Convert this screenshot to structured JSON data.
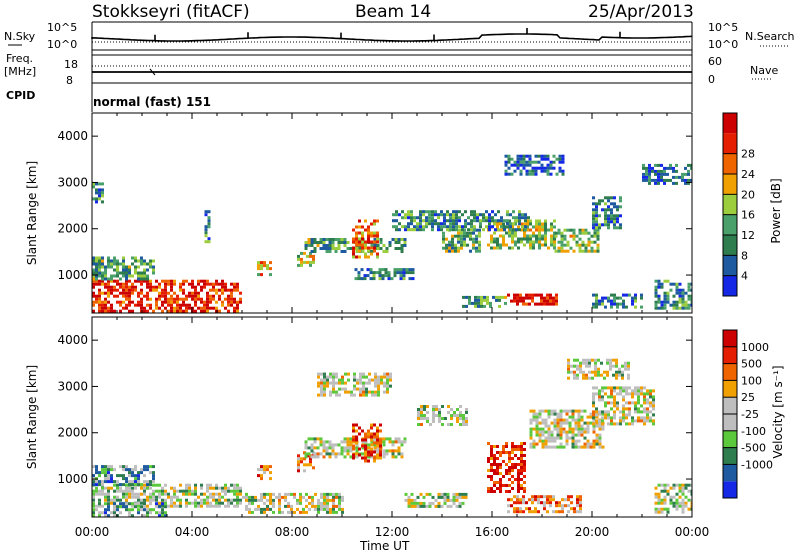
{
  "header": {
    "station": "Stokkseyri (fitACF)",
    "beam": "Beam 14",
    "date": "25/Apr/2013"
  },
  "top_panels": {
    "nsky_label": "N.Sky",
    "nsky_ticks": [
      "10^5",
      "10^0"
    ],
    "nsearch_label": "N.Search",
    "nsearch_ticks": [
      "10^5",
      "10^0"
    ],
    "freq_label_1": "Freq.",
    "freq_label_2": "[MHz]",
    "freq_ticks": [
      "18",
      "8"
    ],
    "nave_label": "Nave",
    "nave_ticks": [
      "60",
      "0"
    ],
    "cpid_label": "CPID",
    "cpid_text": "normal (fast) 151"
  },
  "colors": {
    "power_scale": [
      "#1428e6",
      "#1e5aa0",
      "#2e7d4e",
      "#4aa06a",
      "#9ccd3c",
      "#f0a000",
      "#f06400",
      "#e61e00",
      "#cc0000"
    ],
    "velocity_scale": [
      "#1428e6",
      "#1e5aa0",
      "#2e7d4e",
      "#5cc83c",
      "#bebebe",
      "#bebebe",
      "#f0a000",
      "#f06400",
      "#e61e00",
      "#cc0000"
    ]
  },
  "chart_data": [
    {
      "type": "heatmap",
      "title": "",
      "xlabel": "Time UT",
      "ylabel": "Slant Range [km]",
      "x_ticks": [
        "00:00",
        "04:00",
        "08:00",
        "12:00",
        "16:00",
        "20:00",
        "00:00"
      ],
      "y_ticks": [
        1000,
        2000,
        3000,
        4000
      ],
      "xlim": [
        0,
        24
      ],
      "ylim": [
        180,
        4500
      ],
      "colorbar_label": "Power [dB]",
      "colorbar_ticks": [
        "4",
        "8",
        "12",
        "16",
        "20",
        "24",
        "28"
      ],
      "regions": [
        {
          "t0": 0.0,
          "t1": 5.9,
          "r0": 200,
          "r1": 900,
          "level": 0.85
        },
        {
          "t0": 0.0,
          "t1": 2.5,
          "r0": 900,
          "r1": 1400,
          "level": 0.35
        },
        {
          "t0": 0.0,
          "t1": 0.4,
          "r0": 2600,
          "r1": 3000,
          "level": 0.3
        },
        {
          "t0": 6.6,
          "t1": 7.2,
          "r0": 1000,
          "r1": 1300,
          "level": 0.6
        },
        {
          "t0": 8.2,
          "t1": 8.9,
          "r0": 1200,
          "r1": 1500,
          "level": 0.55
        },
        {
          "t0": 8.5,
          "t1": 12.5,
          "r0": 1500,
          "r1": 1800,
          "level": 0.35
        },
        {
          "t0": 10.4,
          "t1": 11.4,
          "r0": 1400,
          "r1": 2200,
          "level": 0.7
        },
        {
          "t0": 10.5,
          "t1": 12.8,
          "r0": 900,
          "r1": 1150,
          "level": 0.25
        },
        {
          "t0": 14.0,
          "t1": 15.5,
          "r0": 1500,
          "r1": 2000,
          "level": 0.4
        },
        {
          "t0": 14.8,
          "t1": 16.5,
          "r0": 350,
          "r1": 550,
          "level": 0.35
        },
        {
          "t0": 15.8,
          "t1": 18.5,
          "r0": 1600,
          "r1": 2200,
          "level": 0.45
        },
        {
          "t0": 16.6,
          "t1": 18.6,
          "r0": 350,
          "r1": 600,
          "level": 0.95
        },
        {
          "t0": 12.0,
          "t1": 17.5,
          "r0": 2000,
          "r1": 2400,
          "level": 0.3
        },
        {
          "t0": 18.5,
          "t1": 20.2,
          "r0": 1500,
          "r1": 2000,
          "level": 0.45
        },
        {
          "t0": 20.0,
          "t1": 21.2,
          "r0": 2000,
          "r1": 2700,
          "level": 0.25
        },
        {
          "t0": 16.5,
          "t1": 18.8,
          "r0": 3200,
          "r1": 3600,
          "level": 0.2
        },
        {
          "t0": 22.5,
          "t1": 24.0,
          "r0": 300,
          "r1": 900,
          "level": 0.3
        },
        {
          "t0": 20.0,
          "t1": 22.0,
          "r0": 300,
          "r1": 600,
          "level": 0.25
        },
        {
          "t0": 4.5,
          "t1": 4.7,
          "r0": 1700,
          "r1": 2400,
          "level": 0.3
        },
        {
          "t0": 22.0,
          "t1": 24.0,
          "r0": 3000,
          "r1": 3400,
          "level": 0.2
        }
      ]
    },
    {
      "type": "heatmap",
      "title": "",
      "xlabel": "Time UT",
      "ylabel": "Slant Range [km]",
      "x_ticks": [
        "00:00",
        "04:00",
        "08:00",
        "12:00",
        "16:00",
        "20:00",
        "00:00"
      ],
      "y_ticks": [
        1000,
        2000,
        3000,
        4000
      ],
      "xlim": [
        0,
        24
      ],
      "ylim": [
        180,
        4500
      ],
      "colorbar_label": "Velocity [m s⁻¹]",
      "colorbar_ticks": [
        "1000",
        "500",
        "100",
        "25",
        "-25",
        "-100",
        "-500",
        "-1000"
      ],
      "regions": [
        {
          "t0": 0.0,
          "t1": 5.9,
          "r0": 400,
          "r1": 900,
          "level": 0.45
        },
        {
          "t0": 0.0,
          "t1": 3.0,
          "r0": 200,
          "r1": 500,
          "level": 0.3
        },
        {
          "t0": 0.0,
          "t1": 2.5,
          "r0": 900,
          "r1": 1300,
          "level": 0.3
        },
        {
          "t0": 6.6,
          "t1": 7.2,
          "r0": 1000,
          "r1": 1300,
          "level": 0.7
        },
        {
          "t0": 8.2,
          "t1": 8.9,
          "r0": 1200,
          "r1": 1600,
          "level": 0.8
        },
        {
          "t0": 8.5,
          "t1": 12.5,
          "r0": 1500,
          "r1": 1900,
          "level": 0.5
        },
        {
          "t0": 10.4,
          "t1": 11.6,
          "r0": 1400,
          "r1": 2200,
          "level": 0.85
        },
        {
          "t0": 9.0,
          "t1": 12.0,
          "r0": 2800,
          "r1": 3300,
          "level": 0.5
        },
        {
          "t0": 13.0,
          "t1": 15.0,
          "r0": 2200,
          "r1": 2600,
          "level": 0.5
        },
        {
          "t0": 15.8,
          "t1": 17.3,
          "r0": 700,
          "r1": 1800,
          "level": 0.9
        },
        {
          "t0": 16.6,
          "t1": 19.5,
          "r0": 300,
          "r1": 650,
          "level": 0.7
        },
        {
          "t0": 17.5,
          "t1": 20.5,
          "r0": 1700,
          "r1": 2500,
          "level": 0.5
        },
        {
          "t0": 20.0,
          "t1": 22.5,
          "r0": 2200,
          "r1": 3000,
          "level": 0.5
        },
        {
          "t0": 22.5,
          "t1": 24.0,
          "r0": 300,
          "r1": 900,
          "level": 0.45
        },
        {
          "t0": 6.0,
          "t1": 10.0,
          "r0": 300,
          "r1": 700,
          "level": 0.5
        },
        {
          "t0": 12.5,
          "t1": 15.0,
          "r0": 400,
          "r1": 700,
          "level": 0.45
        },
        {
          "t0": 19.0,
          "t1": 21.5,
          "r0": 3200,
          "r1": 3600,
          "level": 0.5
        }
      ]
    }
  ]
}
